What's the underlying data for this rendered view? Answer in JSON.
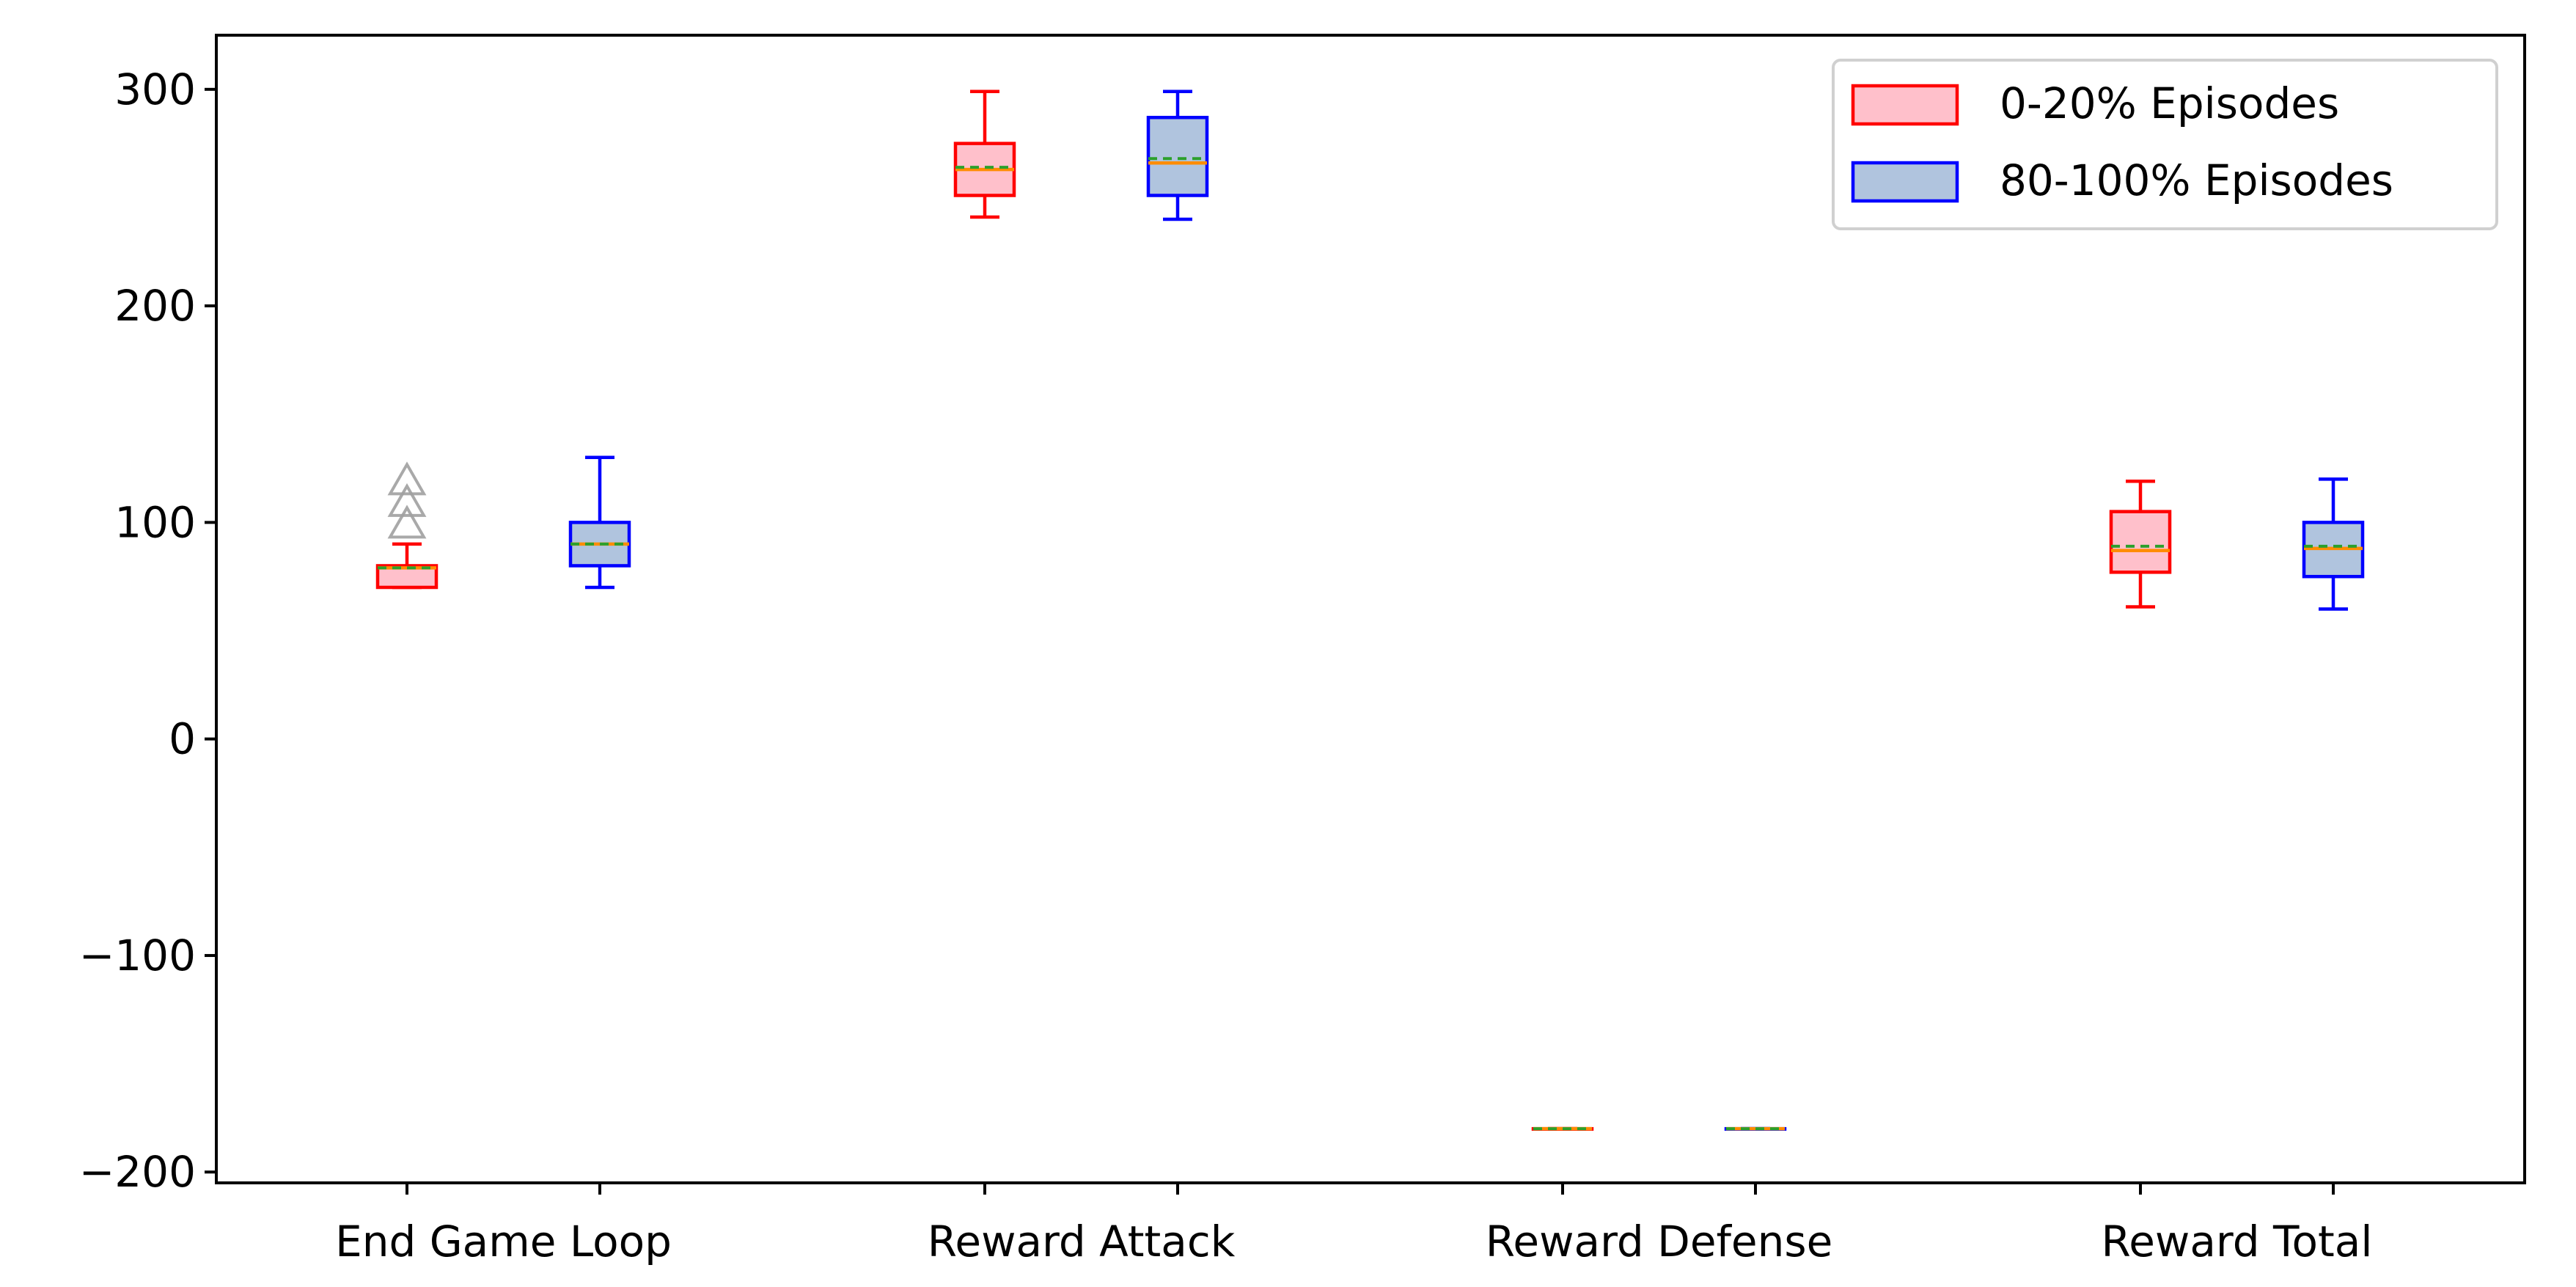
{
  "chart_data": {
    "type": "box",
    "title": "",
    "xlabel": "",
    "ylabel": "",
    "ylim": [
      -205,
      325
    ],
    "yticks": [
      -200,
      -100,
      0,
      100,
      200,
      300
    ],
    "ytick_labels": [
      "−200",
      "−100",
      "0",
      "100",
      "200",
      "300"
    ],
    "categories": [
      "End Game Loop",
      "Reward Attack",
      "Reward Defense",
      "Reward Total"
    ],
    "legend": {
      "position": "top-right"
    },
    "grid": false,
    "series": [
      {
        "name": "0-20% Episodes",
        "edge_color": "#ff0000",
        "fill_color": "#ffc0cb",
        "boxes": [
          {
            "whisker_low": 70,
            "q1": 70,
            "median": 79,
            "mean": 79,
            "q3": 80,
            "whisker_high": 90,
            "fliers": [
              100,
              110,
              120
            ]
          },
          {
            "whisker_low": 241,
            "q1": 251,
            "median": 263,
            "mean": 264,
            "q3": 275,
            "whisker_high": 299,
            "fliers": []
          },
          {
            "whisker_low": -180,
            "q1": -180,
            "median": -180,
            "mean": -180,
            "q3": -180,
            "whisker_high": -180,
            "fliers": []
          },
          {
            "whisker_low": 61,
            "q1": 77,
            "median": 87,
            "mean": 89,
            "q3": 105,
            "whisker_high": 119,
            "fliers": []
          }
        ]
      },
      {
        "name": "80-100% Episodes",
        "edge_color": "#0000ff",
        "fill_color": "#b0c4de",
        "boxes": [
          {
            "whisker_low": 70,
            "q1": 80,
            "median": 90,
            "mean": 90,
            "q3": 100,
            "whisker_high": 130,
            "fliers": []
          },
          {
            "whisker_low": 240,
            "q1": 251,
            "median": 266,
            "mean": 268,
            "q3": 287,
            "whisker_high": 299,
            "fliers": []
          },
          {
            "whisker_low": -180,
            "q1": -180,
            "median": -180,
            "mean": -180,
            "q3": -180,
            "whisker_high": -180,
            "fliers": []
          },
          {
            "whisker_low": 60,
            "q1": 75,
            "median": 88,
            "mean": 89,
            "q3": 100,
            "whisker_high": 120,
            "fliers": []
          }
        ]
      }
    ],
    "median_color": "#ff8c00",
    "mean_color": "#2ca02c",
    "flier_color": "#a0a0a0",
    "flier_marker": "triangle-up-open"
  }
}
